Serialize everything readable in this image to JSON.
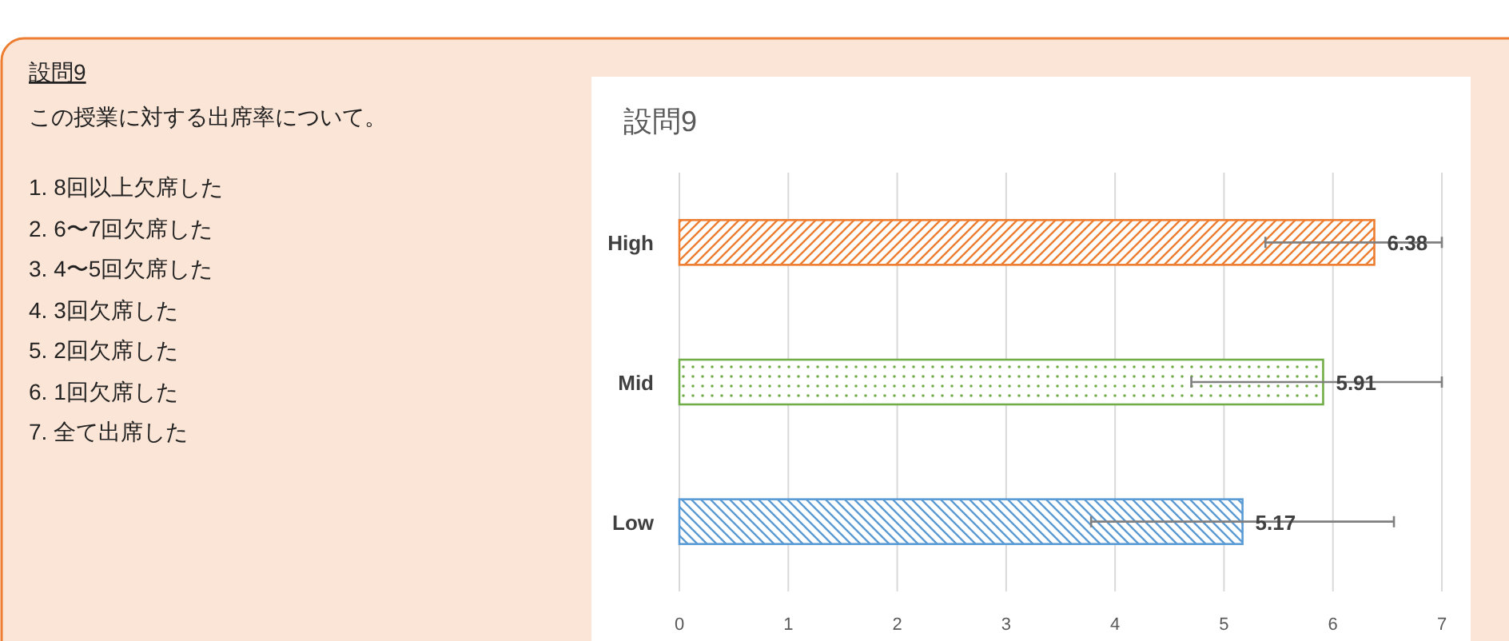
{
  "chart_data": [
    {
      "type": "other",
      "title": "設問9",
      "annotations": [
        "この授業に対する出席率について。",
        "1. 8回以上欠席した",
        "2. 6〜7回欠席した",
        "3. 4〜5回欠席した",
        "4. 3回欠席した",
        "5. 2回欠席した",
        "6. 1回欠席した",
        "7. 全て出席した"
      ]
    },
    {
      "type": "bar",
      "orientation": "horizontal",
      "title": "設問9",
      "categories": [
        "High",
        "Mid",
        "Low"
      ],
      "values": [
        6.38,
        5.91,
        5.17
      ],
      "colors": [
        "#ed7d31",
        "#70ad47",
        "#5b9bd5"
      ],
      "errors": [
        [
          5.38,
          7
        ],
        [
          4.7,
          7
        ],
        [
          3.78,
          6.56
        ]
      ],
      "xlim": [
        0,
        7
      ],
      "xticks": [
        0,
        1,
        2,
        3,
        4,
        5,
        6,
        7
      ],
      "grid": "x",
      "data_labels": true
    }
  ]
}
